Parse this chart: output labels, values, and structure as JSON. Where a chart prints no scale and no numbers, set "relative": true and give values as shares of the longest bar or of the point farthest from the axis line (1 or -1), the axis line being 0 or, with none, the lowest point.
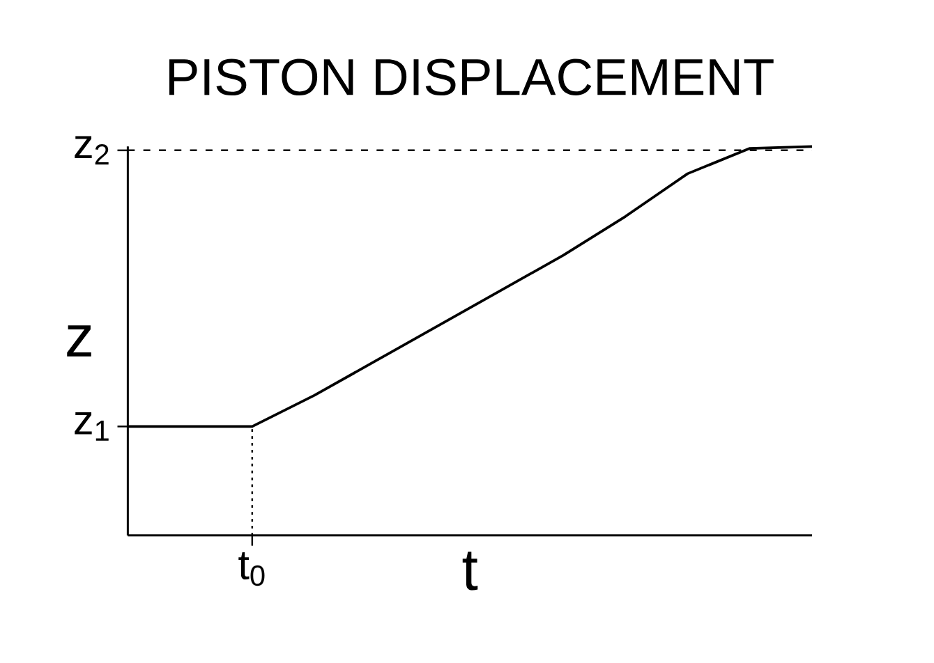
{
  "chart_data": {
    "type": "line",
    "title": "PISTON DISPLACEMENT",
    "xlabel": "t",
    "ylabel": "z",
    "relative": true,
    "categories": [
      null,
      null,
      null,
      null,
      null,
      null,
      null,
      null,
      null,
      null,
      null,
      null
    ],
    "series": [
      {
        "color": "#000000",
        "values": [
          0.28,
          0.28,
          0.28,
          0.36,
          0.45,
          0.54,
          0.63,
          0.72,
          0.82,
          0.93,
          0.995,
          1
        ]
      }
    ],
    "annotations": [
      "t$_{0}$",
      "z$_{1}$"
    ],
    "ref_lines": [
      {
        "axis": "y",
        "value": 0.99,
        "label": "z$_{2}$",
        "line_style": "dashed",
        "color": "#000000"
      }
    ],
    "marker": "none",
    "line_style": "solid"
  }
}
